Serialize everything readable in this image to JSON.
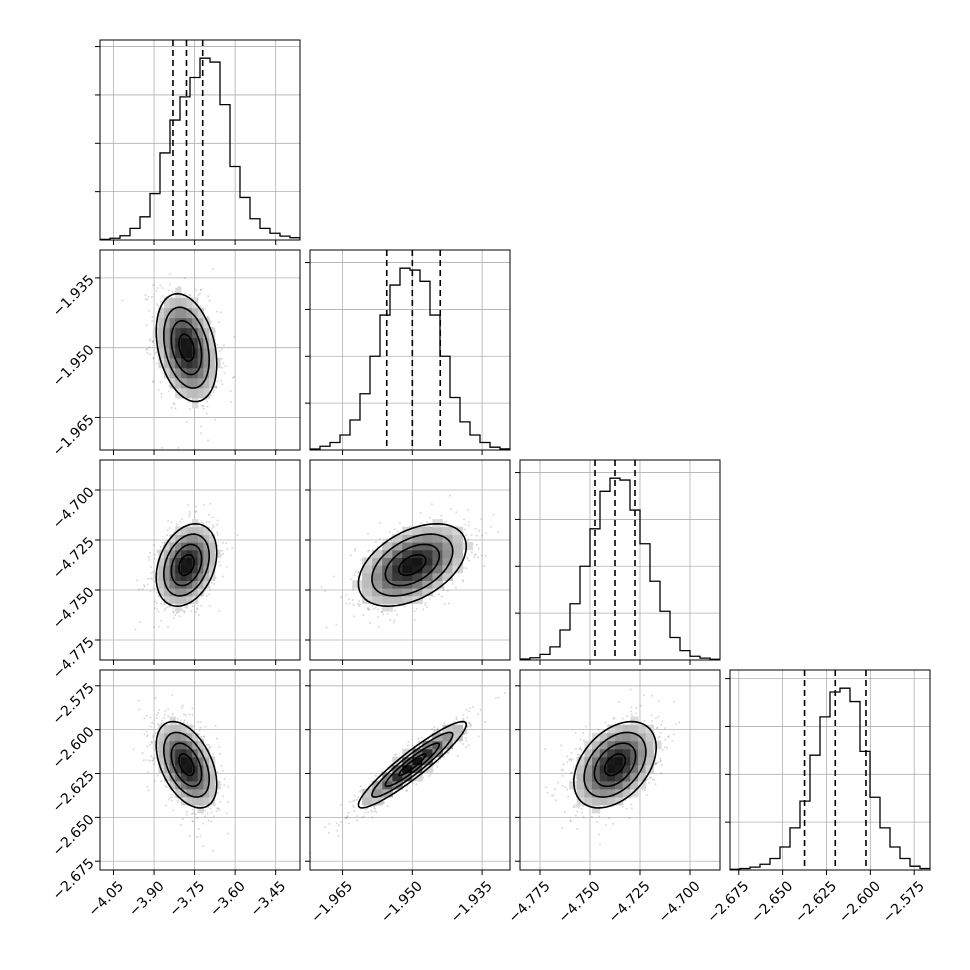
{
  "chart_data": {
    "type": "corner",
    "grid": true,
    "parameters": [
      {
        "range": [
          -4.1,
          -3.36
        ],
        "ticks": [
          -4.05,
          -3.9,
          -3.75,
          -3.6,
          -3.45
        ],
        "tick_labels": [
          "−4.05",
          "−3.90",
          "−3.75",
          "−3.60",
          "−3.45"
        ],
        "quantiles": [
          -3.83,
          -3.78,
          -3.72
        ],
        "std": 0.056,
        "histogram": [
          0.3,
          0.9,
          2.2,
          6,
          12,
          24,
          45,
          62,
          74,
          84,
          94,
          92,
          70,
          38,
          22,
          11,
          6,
          3.5,
          2,
          1.2
        ]
      },
      {
        "range": [
          -1.972,
          -1.929
        ],
        "ticks": [
          -1.965,
          -1.95,
          -1.935
        ],
        "tick_labels": [
          "−1.965",
          "−1.950",
          "−1.935"
        ],
        "quantiles": [
          -1.9555,
          -1.95,
          -1.944
        ],
        "std": 0.0058,
        "histogram": [
          0.5,
          2,
          4,
          8,
          16,
          30,
          50,
          72,
          88,
          97,
          96,
          90,
          72,
          50,
          28,
          15,
          8,
          4,
          1.5,
          0.6
        ]
      },
      {
        "range": [
          -4.785,
          -4.685
        ],
        "ticks": [
          -4.775,
          -4.75,
          -4.725,
          -4.7
        ],
        "tick_labels": [
          "−4.775",
          "−4.750",
          "−4.725",
          "−4.700"
        ],
        "quantiles": [
          -4.7475,
          -4.7375,
          -4.7275
        ],
        "std": 0.0103,
        "histogram": [
          0.5,
          1.2,
          3,
          7,
          16,
          30,
          50,
          70,
          90,
          97,
          96,
          80,
          62,
          42,
          26,
          12,
          5,
          2,
          1,
          0.4
        ]
      },
      {
        "range": [
          -2.68,
          -2.566
        ],
        "ticks": [
          -2.675,
          -2.65,
          -2.625,
          -2.6,
          -2.575
        ],
        "tick_labels": [
          "−2.675",
          "−2.650",
          "−2.625",
          "−2.600",
          "−2.575"
        ],
        "quantiles": [
          -2.6375,
          -2.62,
          -2.6025
        ],
        "std": 0.0123,
        "histogram": [
          0.4,
          0.8,
          1.5,
          3,
          6,
          12,
          22,
          36,
          60,
          80,
          93,
          95,
          88,
          62,
          38,
          22,
          12,
          6,
          2,
          0.8
        ]
      }
    ],
    "correlations": [
      [
        1.0,
        -0.3,
        0.3,
        -0.45
      ],
      [
        -0.3,
        1.0,
        0.45,
        0.93
      ],
      [
        0.3,
        0.45,
        1.0,
        0.4
      ],
      [
        -0.45,
        0.93,
        0.4,
        1.0
      ]
    ],
    "contour_levels_sigma": [
      0.5,
      1.0,
      1.5,
      2.0
    ]
  }
}
